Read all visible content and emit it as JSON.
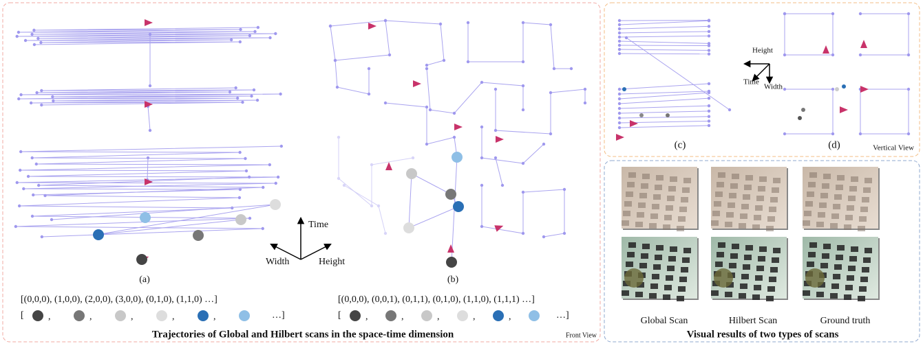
{
  "left_panel": {
    "subfigures": [
      {
        "label": "(a)",
        "sequence": "[(0,0,0),  (1,0,0), (2,0,0), (3,0,0), (0,1,0), (1,1,0) …]"
      },
      {
        "label": "(b)",
        "sequence": "[(0,0,0),  (0,0,1), (0,1,1), (0,1,0), (1,1,0), (1,1,1) …]"
      }
    ],
    "dot_row_open": "[",
    "dot_row_separator": ",",
    "dot_row_close": "…]",
    "axes": {
      "up": "Time",
      "left": "Width",
      "right": "Height"
    },
    "caption": "Trajectories of Global and Hilbert scans in the space-time dimension",
    "view": "Front View"
  },
  "top_right_panel": {
    "subfigures": [
      {
        "label": "(c)"
      },
      {
        "label": "(d)"
      }
    ],
    "axes": {
      "right": "Height",
      "down_left": "Time",
      "down": "Width"
    },
    "view": "Vertical View"
  },
  "bottom_right_panel": {
    "columns": [
      "Global Scan",
      "Hilbert Scan",
      "Ground truth"
    ],
    "caption": "Visual results of two types of scans"
  }
}
